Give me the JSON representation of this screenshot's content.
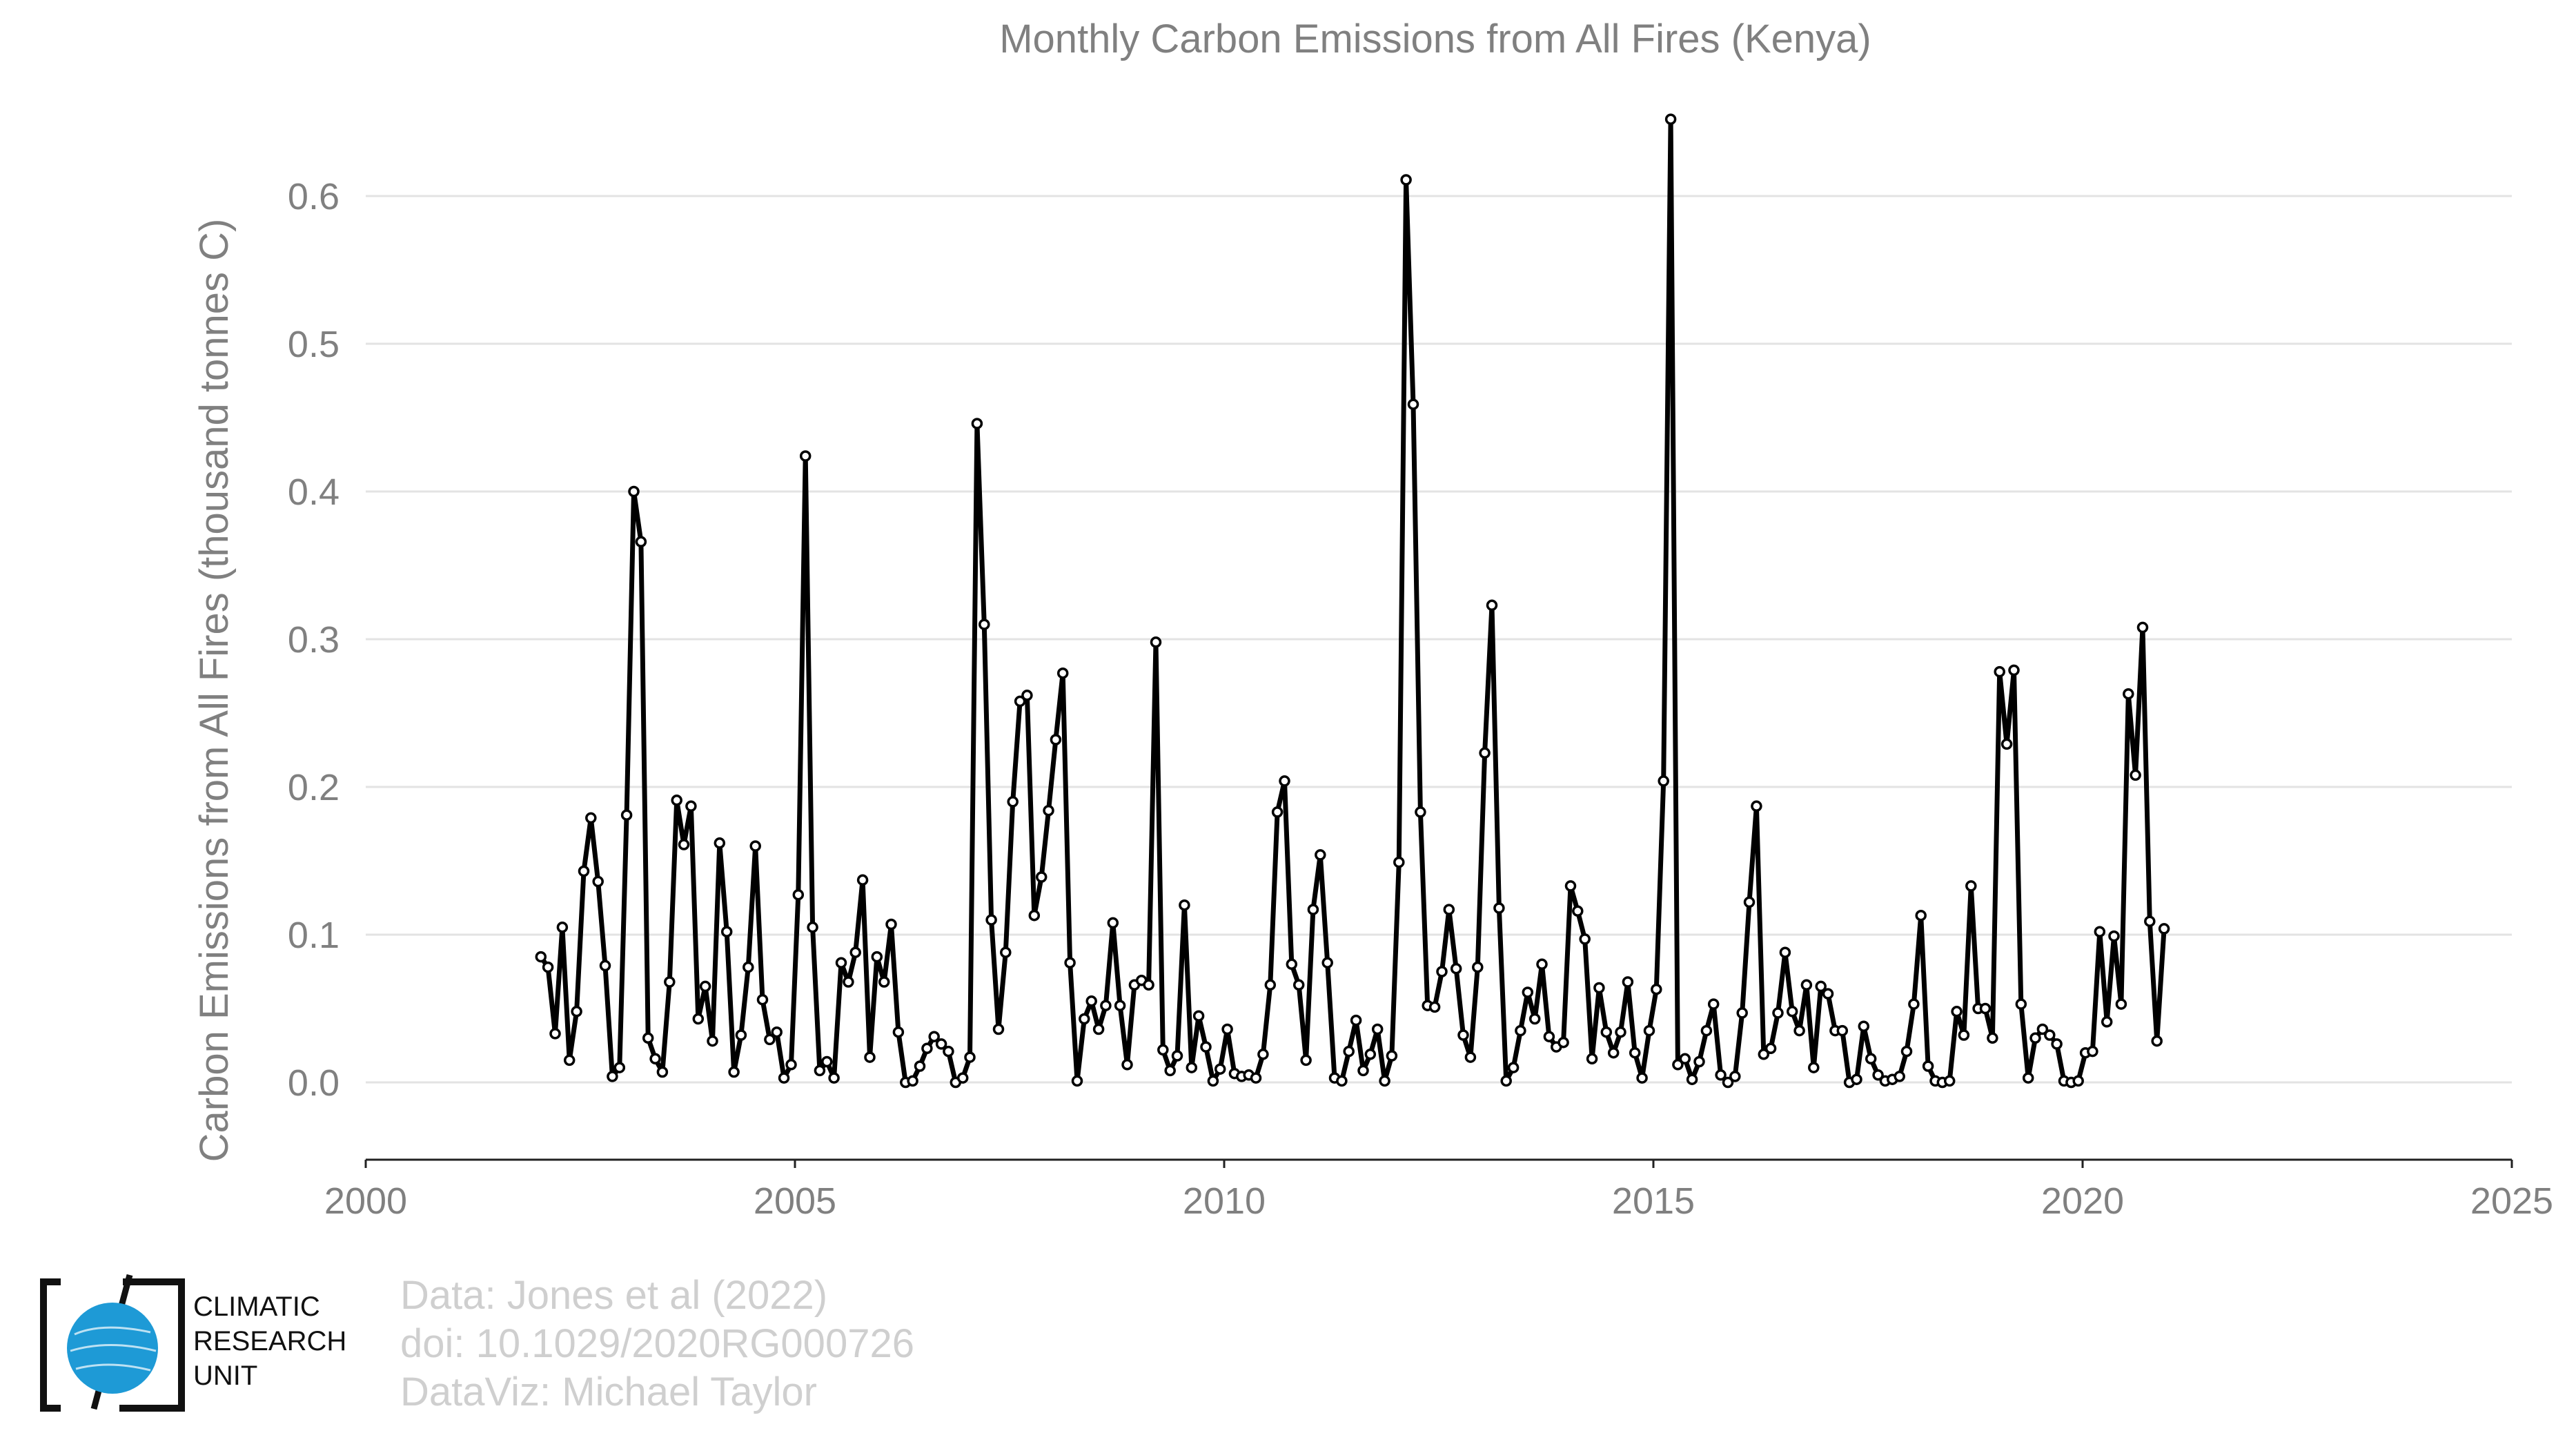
{
  "chart_data": {
    "type": "line",
    "title": "Monthly Carbon Emissions from All Fires (Kenya)",
    "xlabel": "",
    "ylabel": "Carbon Emissions from All Fires (thousand tonnes C)",
    "xlim": [
      2000,
      2025
    ],
    "ylim": [
      -0.05,
      0.65
    ],
    "xticks": [
      2000,
      2005,
      2010,
      2015,
      2020,
      2025
    ],
    "yticks": [
      0.0,
      0.1,
      0.2,
      0.3,
      0.4,
      0.5,
      0.6
    ],
    "ytick_labels": [
      "0.0",
      "0.1",
      "0.2",
      "0.3",
      "0.4",
      "0.5",
      "0.6"
    ],
    "grid": "horizontal",
    "series": [
      {
        "x_start": 2002.04,
        "x_step": 0.0833,
        "values": [
          0.085,
          0.078,
          0.033,
          0.105,
          0.015,
          0.048,
          0.143,
          0.179,
          0.136,
          0.079,
          0.004,
          0.01,
          0.181,
          0.4,
          0.366,
          0.03,
          0.016,
          0.007,
          0.068,
          0.191,
          0.161,
          0.187,
          0.043,
          0.065,
          0.028,
          0.162,
          0.102,
          0.007,
          0.032,
          0.078,
          0.16,
          0.056,
          0.029,
          0.034,
          0.003,
          0.012,
          0.127,
          0.424,
          0.105,
          0.008,
          0.014,
          0.003,
          0.081,
          0.068,
          0.088,
          0.137,
          0.017,
          0.085,
          0.068,
          0.107,
          0.034,
          0.0,
          0.001,
          0.011,
          0.023,
          0.031,
          0.026,
          0.021,
          0.0,
          0.003,
          0.017,
          0.446,
          0.31,
          0.11,
          0.036,
          0.088,
          0.19,
          0.258,
          0.262,
          0.113,
          0.139,
          0.184,
          0.232,
          0.277,
          0.081,
          0.001,
          0.043,
          0.055,
          0.036,
          0.052,
          0.108,
          0.052,
          0.012,
          0.066,
          0.069,
          0.066,
          0.298,
          0.022,
          0.008,
          0.018,
          0.12,
          0.01,
          0.045,
          0.024,
          0.001,
          0.009,
          0.036,
          0.006,
          0.004,
          0.005,
          0.003,
          0.019,
          0.066,
          0.183,
          0.204,
          0.08,
          0.066,
          0.015,
          0.117,
          0.154,
          0.081,
          0.003,
          0.001,
          0.021,
          0.042,
          0.008,
          0.019,
          0.036,
          0.001,
          0.018,
          0.149,
          0.611,
          0.459,
          0.183,
          0.052,
          0.051,
          0.075,
          0.117,
          0.077,
          0.032,
          0.017,
          0.078,
          0.223,
          0.323,
          0.118,
          0.001,
          0.01,
          0.035,
          0.061,
          0.043,
          0.08,
          0.031,
          0.024,
          0.027,
          0.133,
          0.116,
          0.097,
          0.016,
          0.064,
          0.034,
          0.02,
          0.034,
          0.068,
          0.02,
          0.003,
          0.035,
          0.063,
          0.204,
          0.652,
          0.012,
          0.016,
          0.002,
          0.014,
          0.035,
          0.053,
          0.005,
          0.0,
          0.004,
          0.047,
          0.122,
          0.187,
          0.019,
          0.023,
          0.047,
          0.088,
          0.048,
          0.035,
          0.066,
          0.01,
          0.065,
          0.06,
          0.035,
          0.035,
          0.0,
          0.002,
          0.038,
          0.016,
          0.005,
          0.001,
          0.002,
          0.004,
          0.021,
          0.053,
          0.113,
          0.011,
          0.001,
          0.0,
          0.001,
          0.048,
          0.032,
          0.133,
          0.05,
          0.05,
          0.03,
          0.278,
          0.229,
          0.279,
          0.053,
          0.003,
          0.03,
          0.036,
          0.032,
          0.026,
          0.001,
          0.0,
          0.001,
          0.02,
          0.021,
          0.102,
          0.041,
          0.099,
          0.053,
          0.263,
          0.208,
          0.308,
          0.109,
          0.028,
          0.104
        ]
      }
    ]
  },
  "credits": {
    "line1": "Data: Jones et al (2022)",
    "line2": "doi: 10.1029/2020RG000726",
    "line3": "DataViz: Michael Taylor"
  },
  "logo": {
    "line1": "CLIMATIC",
    "line2": "RESEARCH",
    "line3": "UNIT",
    "globe_color": "#1e9ad6"
  }
}
